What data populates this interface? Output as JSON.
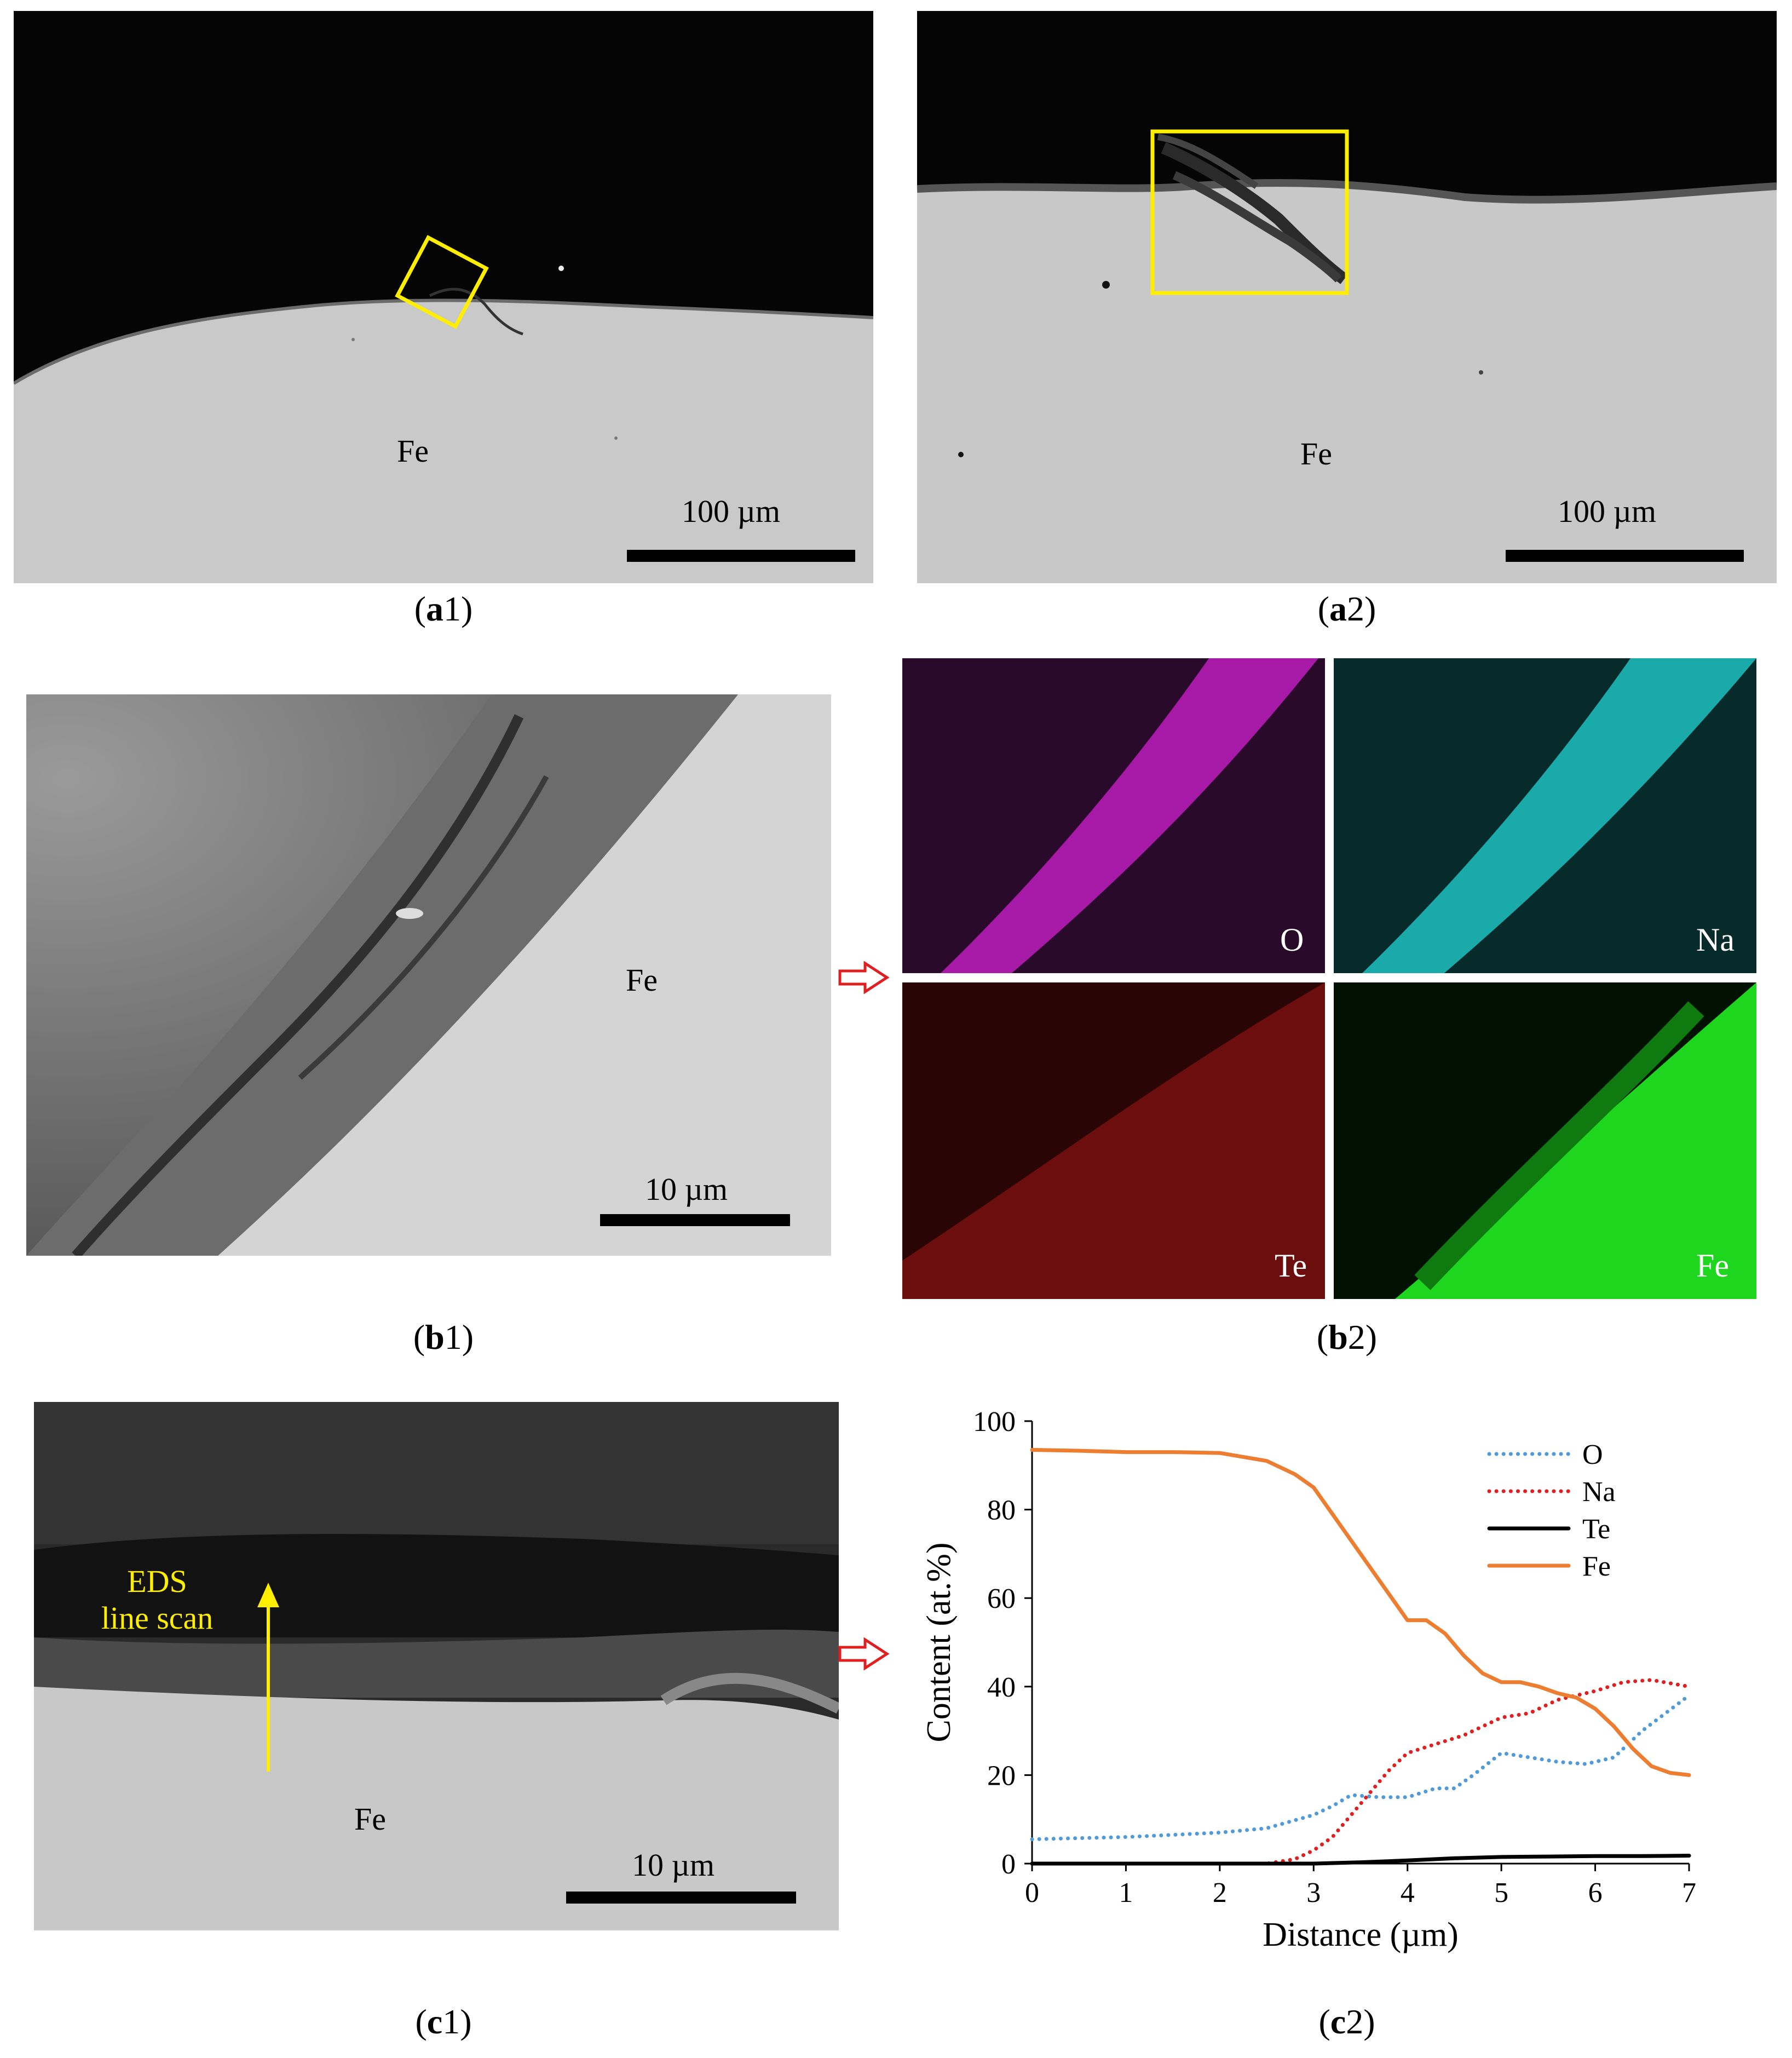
{
  "panels": {
    "a1": {
      "caption_letter": "a",
      "caption_number": "1",
      "material_label": "Fe",
      "scale_label": "100 µm"
    },
    "a2": {
      "caption_letter": "a",
      "caption_number": "2",
      "material_label": "Fe",
      "scale_label": "100 µm"
    },
    "b1": {
      "caption_letter": "b",
      "caption_number": "1",
      "material_label": "Fe",
      "scale_label": "10 µm"
    },
    "b2": {
      "caption_letter": "b",
      "caption_number": "2",
      "maps": [
        {
          "element": "O",
          "color": "#d11fd1"
        },
        {
          "element": "Na",
          "color": "#22d6d6"
        },
        {
          "element": "Te",
          "color": "#b31212"
        },
        {
          "element": "Fe",
          "color": "#1ed61e"
        }
      ]
    },
    "c1": {
      "caption_letter": "c",
      "caption_number": "1",
      "scan_label_line1": "EDS",
      "scan_label_line2": "line scan",
      "material_label": "Fe",
      "scale_label": "10 µm"
    },
    "c2": {
      "caption_letter": "c",
      "caption_number": "2"
    }
  },
  "colors": {
    "highlight_box": "#ffee00",
    "arrow": "#e02020"
  },
  "chart_data": {
    "type": "line",
    "xlabel": "Distance (µm)",
    "ylabel": "Content (at.%)",
    "xlim": [
      0,
      7
    ],
    "ylim": [
      0,
      100
    ],
    "xticks": [
      0,
      1,
      2,
      3,
      4,
      5,
      6,
      7
    ],
    "yticks": [
      0,
      20,
      40,
      60,
      80,
      100
    ],
    "grid": false,
    "legend_position": "top-right",
    "series": [
      {
        "name": "O",
        "color": "#4f9bd9",
        "style": "dotted",
        "x": [
          0,
          1,
          2,
          2.5,
          3,
          3.2,
          3.4,
          3.7,
          4,
          4.3,
          4.5,
          4.7,
          5,
          5.3,
          5.6,
          5.9,
          6.2,
          6.5,
          7
        ],
        "y": [
          5.5,
          6,
          7,
          8,
          11,
          13,
          15.5,
          15,
          15,
          17,
          17,
          20,
          25,
          24,
          23,
          22.5,
          24,
          30,
          38
        ]
      },
      {
        "name": "Na",
        "color": "#e02020",
        "style": "dotted",
        "x": [
          0,
          1,
          2,
          2.5,
          2.8,
          3,
          3.2,
          3.4,
          3.6,
          3.8,
          4,
          4.3,
          4.6,
          5,
          5.3,
          5.6,
          6,
          6.3,
          6.6,
          7
        ],
        "y": [
          0,
          0,
          0,
          0,
          1,
          3,
          6,
          11,
          16,
          21,
          25,
          27,
          29,
          33,
          34,
          37,
          39,
          41,
          41.5,
          40
        ]
      },
      {
        "name": "Te",
        "color": "#000000",
        "style": "solid",
        "x": [
          0,
          1,
          2,
          3,
          3.5,
          4,
          4.5,
          5,
          5.5,
          6,
          6.5,
          7
        ],
        "y": [
          0,
          0,
          0,
          0,
          0.3,
          0.7,
          1.2,
          1.5,
          1.6,
          1.7,
          1.7,
          1.8
        ]
      },
      {
        "name": "Fe",
        "color": "#ed7d31",
        "style": "solid",
        "x": [
          0,
          0.5,
          1,
          1.5,
          2,
          2.5,
          2.8,
          3,
          3.2,
          3.4,
          3.6,
          3.8,
          4,
          4.2,
          4.4,
          4.6,
          4.8,
          5,
          5.2,
          5.4,
          5.6,
          5.8,
          6,
          6.2,
          6.4,
          6.6,
          6.8,
          7
        ],
        "y": [
          93.5,
          93.3,
          93,
          93,
          92.8,
          91,
          88,
          85,
          79,
          73,
          67,
          61,
          55,
          55,
          52,
          47,
          43,
          41,
          41,
          40,
          38.5,
          37.5,
          35,
          31,
          26,
          22,
          20.5,
          20
        ]
      }
    ]
  }
}
